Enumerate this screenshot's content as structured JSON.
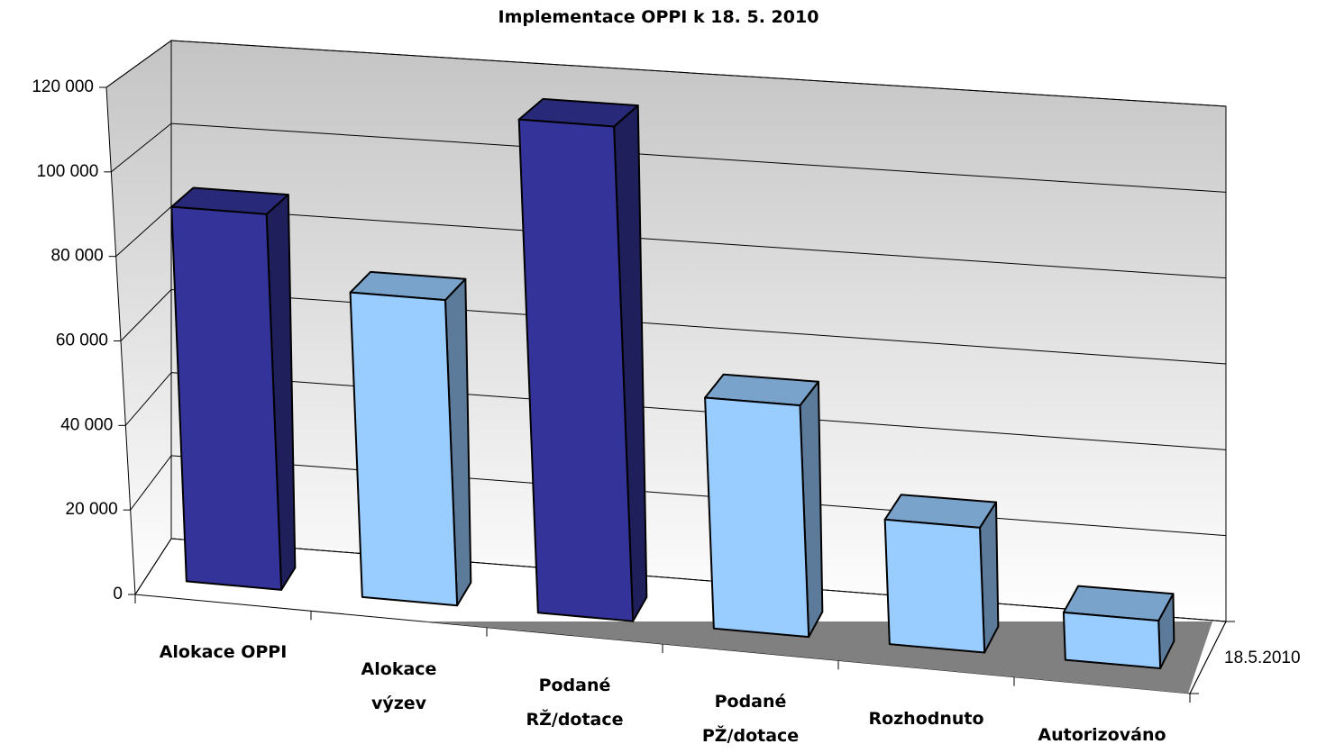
{
  "chart_data": {
    "type": "bar3d",
    "title": "Implementace OPPI k 18. 5. 2010",
    "categories": [
      "Alokace OPPI",
      "Alokace\nvýzev",
      "Podané\nRŽ/dotace",
      "Podané\nPŽ/dotace",
      "Rozhodnuto",
      "Autorizováno"
    ],
    "series": [
      {
        "name": "18.5.2010",
        "colors": [
          "#333399",
          "#99ccff",
          "#333399",
          "#99ccff",
          "#99ccff",
          "#99ccff"
        ],
        "values": [
          89000,
          72000,
          116000,
          54000,
          29000,
          11000
        ]
      }
    ],
    "ylim": [
      0,
      120000
    ],
    "yticks": [
      0,
      {
        "value": 20000,
        "label": "20 000"
      },
      {
        "value": 40000,
        "label": "40 000"
      },
      {
        "value": 60000,
        "label": "60 000"
      },
      {
        "value": 80000,
        "label": "80 000"
      },
      {
        "value": 100000,
        "label": "100 000"
      },
      {
        "value": 120000,
        "label": "120 000"
      }
    ],
    "grid": true
  }
}
